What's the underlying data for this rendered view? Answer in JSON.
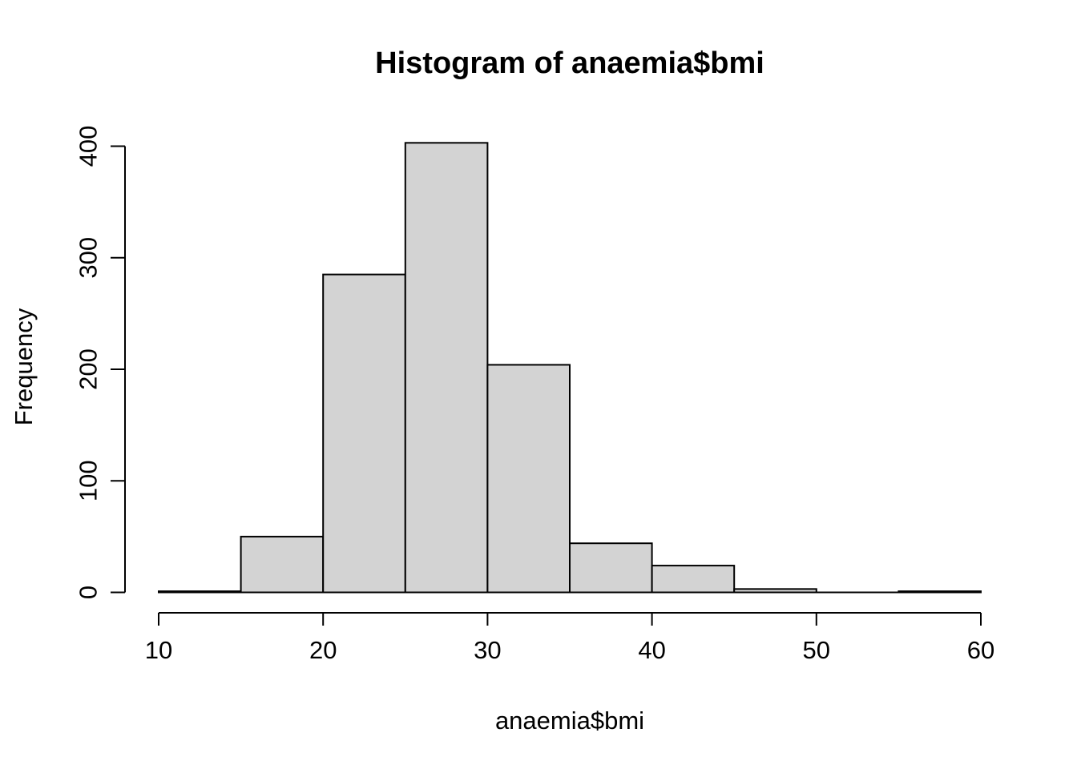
{
  "chart_data": {
    "type": "bar",
    "chart_kind": "histogram",
    "title": "Histogram of anaemia$bmi",
    "xlabel": "anaemia$bmi",
    "ylabel": "Frequency",
    "breaks": [
      10,
      15,
      20,
      25,
      30,
      35,
      40,
      45,
      50,
      55,
      60
    ],
    "counts": [
      1,
      50,
      285,
      403,
      204,
      44,
      24,
      3,
      0,
      1
    ],
    "x_ticks": [
      10,
      20,
      30,
      40,
      50,
      60
    ],
    "y_ticks": [
      0,
      100,
      200,
      300,
      400
    ],
    "xlim": [
      10,
      60
    ],
    "ylim": [
      0,
      400
    ],
    "grid": false,
    "legend": false,
    "colors": {
      "bar_fill": "#d3d3d3",
      "bar_stroke": "#000000",
      "axis": "#000000",
      "text": "#000000",
      "background": "#ffffff"
    }
  }
}
